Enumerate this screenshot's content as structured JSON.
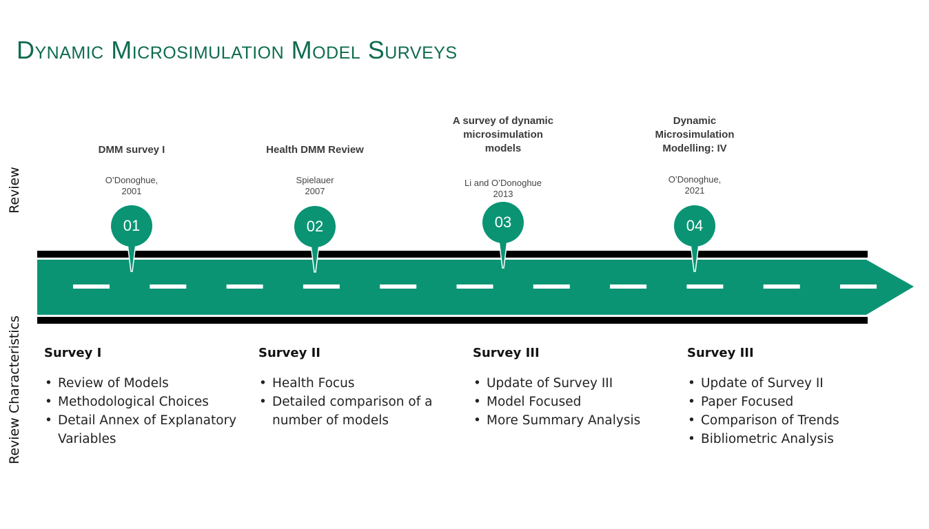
{
  "page": {
    "title": "Dynamic Microsimulation Model Surveys",
    "side_labels": {
      "top": "Review",
      "bottom": "Review Characteristics"
    }
  },
  "colors": {
    "accent": "#0a9474",
    "title": "#0e6b4f",
    "road_border": "#000000",
    "dash": "#ffffff"
  },
  "milestones": [
    {
      "num": "01",
      "head": "DMM survey I",
      "sub": "O’Donoghue,\n2001"
    },
    {
      "num": "02",
      "head": "Health DMM Review",
      "sub": "Spielauer\n2007"
    },
    {
      "num": "03",
      "head": "A survey of dynamic microsimulation models",
      "sub": "Li and O’Donoghue\n2013"
    },
    {
      "num": "04",
      "head": "Dynamic Microsimulation Modelling: IV",
      "sub": "O’Donoghue,\n2021"
    }
  ],
  "columns": [
    {
      "title": "Survey I",
      "items": [
        "Review of Models",
        "Methodological Choices",
        "Detail Annex of Explanatory Variables"
      ]
    },
    {
      "title": "Survey II",
      "items": [
        "Health Focus",
        "Detailed comparison of a number of models"
      ]
    },
    {
      "title": "Survey III",
      "items": [
        "Update of Survey III",
        "Model Focused",
        "More Summary Analysis"
      ]
    },
    {
      "title": "Survey III",
      "items": [
        "Update of Survey II",
        "Paper  Focused",
        "Comparison of Trends",
        "Bibliometric Analysis"
      ]
    }
  ]
}
